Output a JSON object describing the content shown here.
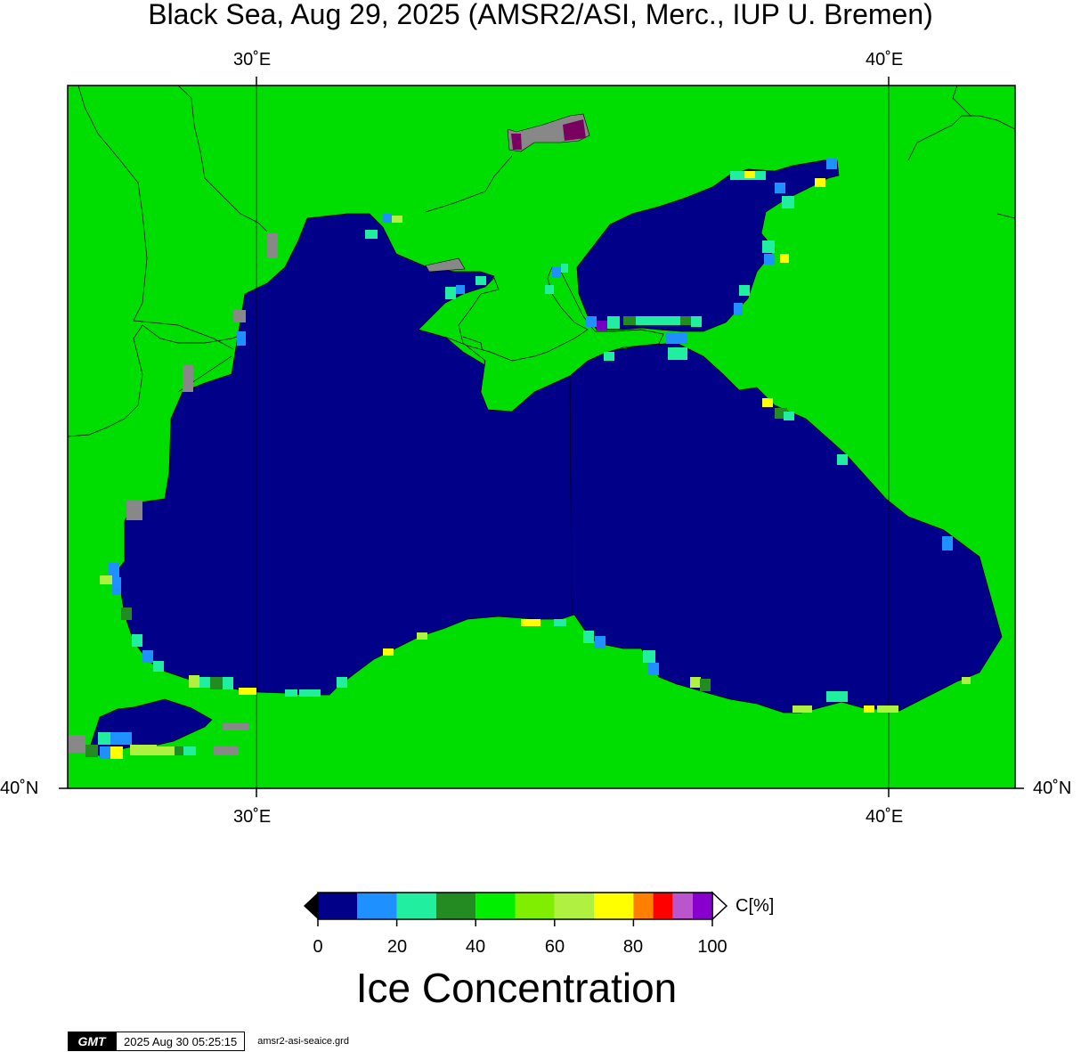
{
  "title": "Black Sea, Aug 29, 2025 (AMSR2/ASI, Merc., IUP U. Bremen)",
  "axes": {
    "top_ticks": [
      "30˚E",
      "40˚E"
    ],
    "bottom_ticks": [
      "30˚E",
      "40˚E"
    ],
    "left_tick": "40˚N",
    "right_tick": "40˚N"
  },
  "colors": {
    "water_zero": "#000088",
    "land": "#00dd00",
    "coast_line": "#000000",
    "missing": "#888888"
  },
  "colorbar": {
    "unit_label": "C[%]",
    "title": "Ice Concentration",
    "tick_labels": [
      "0",
      "20",
      "40",
      "60",
      "80",
      "100"
    ],
    "range": [
      0,
      100
    ],
    "bins": [
      {
        "from": 0,
        "to": 10,
        "color": "#000088"
      },
      {
        "from": 10,
        "to": 20,
        "color": "#1e90ff"
      },
      {
        "from": 20,
        "to": 30,
        "color": "#22eea0"
      },
      {
        "from": 30,
        "to": 40,
        "color": "#228b22"
      },
      {
        "from": 40,
        "to": 50,
        "color": "#00ee00"
      },
      {
        "from": 50,
        "to": 60,
        "color": "#80ee00"
      },
      {
        "from": 60,
        "to": 70,
        "color": "#b0f040"
      },
      {
        "from": 70,
        "to": 80,
        "color": "#ffff00"
      },
      {
        "from": 80,
        "to": 85,
        "color": "#ff7f00"
      },
      {
        "from": 85,
        "to": 90,
        "color": "#ff0000"
      },
      {
        "from": 90,
        "to": 95,
        "color": "#bb55cc"
      },
      {
        "from": 95,
        "to": 100,
        "color": "#8800cc"
      }
    ]
  },
  "stamp": {
    "logo": "GMT",
    "timestamp": "2025 Aug 30 05:25:15",
    "filename": "amsr2-asi-seaice.grd"
  }
}
